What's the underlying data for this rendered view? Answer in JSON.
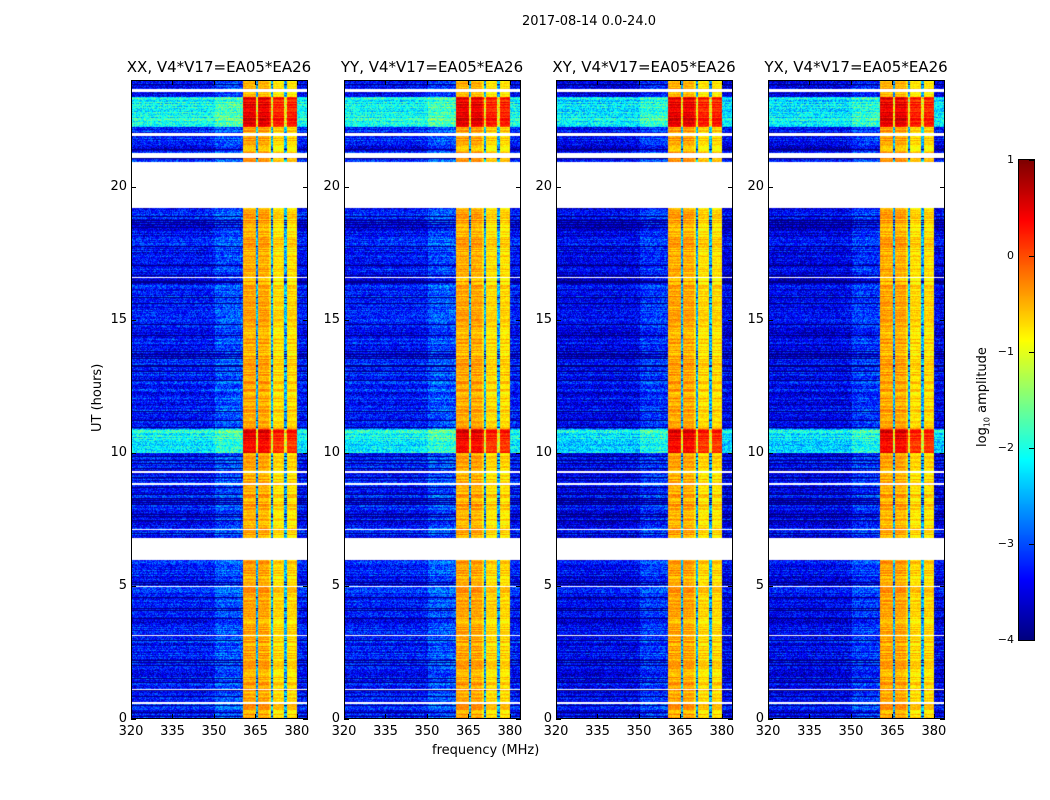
{
  "suptitle": "2017-08-14 0.0-24.0",
  "chart_data": {
    "type": "heatmap",
    "title": "2017-08-14 0.0-24.0",
    "xlabel": "frequency (MHz)",
    "ylabel": "UT (hours)",
    "xlim": [
      320,
      384
    ],
    "ylim": [
      0,
      24
    ],
    "xticks": [
      "320",
      "335",
      "350",
      "365",
      "380"
    ],
    "xtick_values": [
      320,
      335,
      350,
      365,
      380
    ],
    "yticks": [
      "0",
      "5",
      "10",
      "15",
      "20"
    ],
    "ytick_values": [
      0,
      5,
      10,
      15,
      20
    ],
    "panels": [
      {
        "title": "XX, V4*V17=EA05*EA26"
      },
      {
        "title": "YY, V4*V17=EA05*EA26"
      },
      {
        "title": "XY, V4*V17=EA05*EA26"
      },
      {
        "title": "YX, V4*V17=EA05*EA26"
      }
    ],
    "colorbar": {
      "label": "log10 amplitude",
      "label_main": "log",
      "label_sub": "10",
      "label_rest": " amplitude",
      "range": [
        -4,
        1
      ],
      "ticks": [
        "1",
        "0",
        "−1",
        "−2",
        "−3",
        "−4"
      ],
      "tick_values": [
        1,
        0,
        -1,
        -2,
        -3,
        -4
      ],
      "colormap": "jet"
    },
    "flagged_hours": [
      [
        19.25,
        20.97
      ],
      [
        5.97,
        6.8
      ],
      [
        0.55,
        0.62
      ],
      [
        1.08,
        1.13
      ],
      [
        3.1,
        3.15
      ],
      [
        4.95,
        5.0
      ],
      [
        7.1,
        7.15
      ],
      [
        8.8,
        8.88
      ],
      [
        9.25,
        9.32
      ],
      [
        16.6,
        16.65
      ],
      [
        21.1,
        21.3
      ],
      [
        21.95,
        22.05
      ],
      [
        23.6,
        23.7
      ]
    ],
    "bright_band_mhz": [
      360.5,
      380
    ],
    "band_gaps_mhz": [
      365.5,
      371,
      376
    ],
    "strong_hours": [
      [
        10.0,
        10.9
      ],
      [
        22.3,
        23.4
      ]
    ],
    "noise_floor_log10": -3.3,
    "band_level_log10": -0.6
  }
}
